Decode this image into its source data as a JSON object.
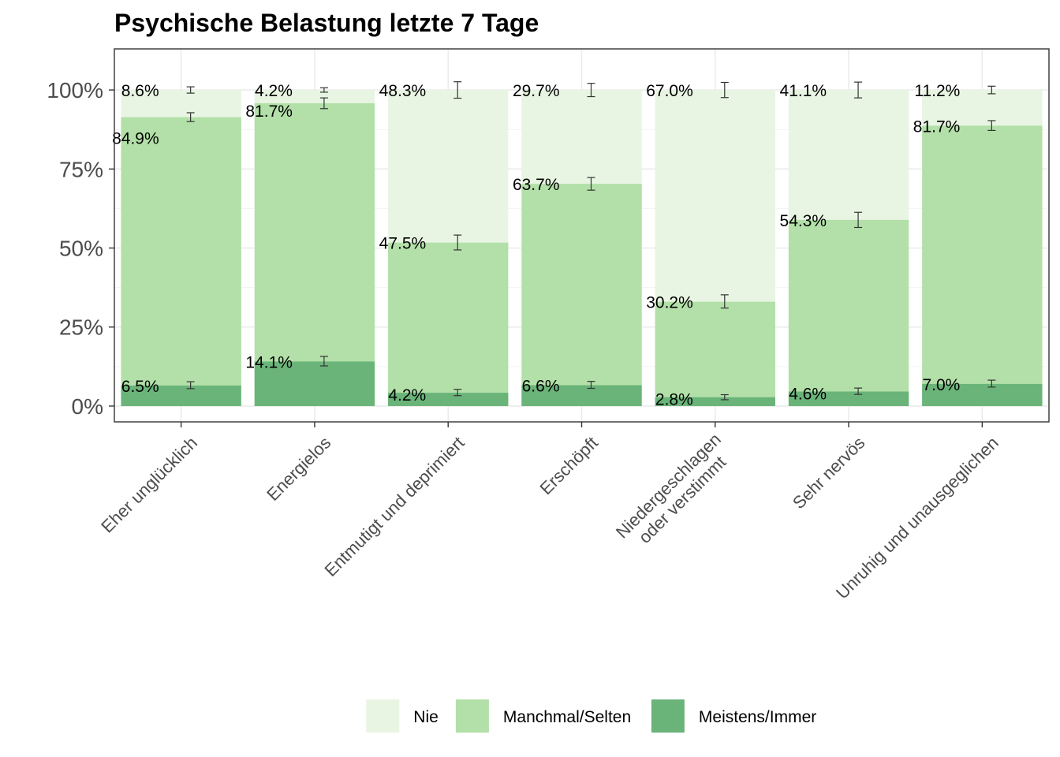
{
  "chart_data": {
    "type": "bar",
    "stacked": "overlay",
    "title": "Psychische Belastung letzte 7 Tage",
    "xlabel": "",
    "ylabel": "",
    "ylim": [
      -0.05,
      1.13
    ],
    "y_ticks": [
      0,
      0.25,
      0.5,
      0.75,
      1.0
    ],
    "y_tick_labels": [
      "0%",
      "25%",
      "50%",
      "75%",
      "100%"
    ],
    "grid": true,
    "legend_position": "bottom",
    "categories": [
      [
        "Eher unglücklich"
      ],
      [
        "Energielos"
      ],
      [
        "Entmutigt und deprimiert"
      ],
      [
        "Erschöpft"
      ],
      [
        "Niedergeschlagen",
        "oder verstimmt"
      ],
      [
        "Sehr nervös"
      ],
      [
        "Unruhig und unausgeglichen"
      ]
    ],
    "series": [
      {
        "name": "Nie",
        "color": "#e8f5e2",
        "cumulative": [
          1.0,
          1.0,
          1.0,
          1.0,
          1.0,
          1.0,
          1.0
        ],
        "labels": [
          "8.6%",
          "4.2%",
          "48.3%",
          "29.7%",
          "67.0%",
          "41.1%",
          "11.2%"
        ],
        "error": [
          [
            0.99,
            1.01
          ],
          [
            0.993,
            1.007
          ],
          [
            0.974,
            1.026
          ],
          [
            0.979,
            1.021
          ],
          [
            0.976,
            1.024
          ],
          [
            0.975,
            1.025
          ],
          [
            0.988,
            1.012
          ]
        ]
      },
      {
        "name": "Manchmal/Selten",
        "color": "#b2e0a8",
        "cumulative": [
          0.914,
          0.958,
          0.517,
          0.703,
          0.33,
          0.589,
          0.887
        ],
        "labels": [
          "84.9%",
          "81.7%",
          "47.5%",
          "63.7%",
          "30.2%",
          "54.3%",
          "81.7%"
        ],
        "error": [
          [
            0.9,
            0.928
          ],
          [
            0.941,
            0.975
          ],
          [
            0.494,
            0.541
          ],
          [
            0.683,
            0.723
          ],
          [
            0.31,
            0.352
          ],
          [
            0.565,
            0.613
          ],
          [
            0.872,
            0.903
          ]
        ]
      },
      {
        "name": "Meistens/Immer",
        "color": "#6ab47a",
        "cumulative": [
          0.065,
          0.141,
          0.042,
          0.066,
          0.028,
          0.046,
          0.07
        ],
        "labels": [
          "6.5%",
          "14.1%",
          "4.2%",
          "6.6%",
          "2.8%",
          "4.6%",
          "7.0%"
        ],
        "error": [
          [
            0.055,
            0.077
          ],
          [
            0.127,
            0.157
          ],
          [
            0.033,
            0.053
          ],
          [
            0.056,
            0.078
          ],
          [
            0.02,
            0.036
          ],
          [
            0.037,
            0.057
          ],
          [
            0.06,
            0.082
          ]
        ]
      }
    ]
  }
}
